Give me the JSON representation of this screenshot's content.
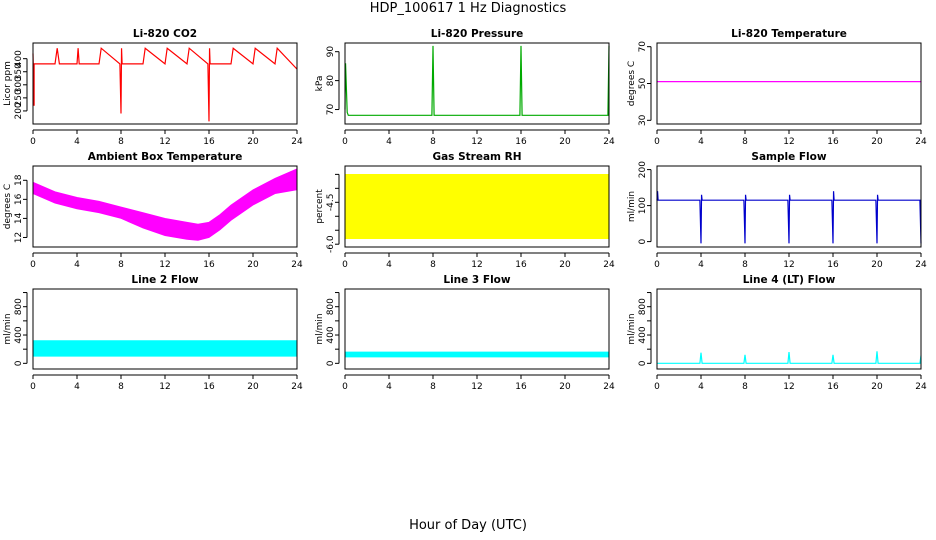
{
  "title": "HDP_100617  1 Hz Diagnostics",
  "xlabel": "Hour of Day (UTC)",
  "chart_data": [
    {
      "type": "line",
      "title": "Li-820 CO2",
      "ylabel": "Licor ppm",
      "color": "#ff0000",
      "xlim": [
        0,
        24
      ],
      "ylim": [
        150,
        460
      ],
      "xticks": [
        0,
        4,
        8,
        12,
        16,
        20,
        24
      ],
      "yticks": [
        200,
        250,
        300,
        350,
        400
      ],
      "series": {
        "name": "Li-820 CO2",
        "x": [
          0,
          0.1,
          0.1,
          0.2,
          0.3,
          2,
          2.2,
          2.4,
          4,
          4.1,
          4.2,
          6,
          6.2,
          7.9,
          8,
          8.05,
          8.1,
          10,
          10.2,
          12,
          12.2,
          14,
          14.2,
          15.9,
          16,
          16.05,
          16.1,
          18,
          18.2,
          20,
          20.2,
          22,
          22.2,
          24
        ],
        "y": [
          420,
          220,
          380,
          380,
          380,
          380,
          440,
          380,
          380,
          440,
          380,
          380,
          440,
          380,
          190,
          440,
          380,
          380,
          440,
          380,
          440,
          380,
          440,
          380,
          160,
          440,
          380,
          380,
          440,
          380,
          440,
          380,
          440,
          360
        ]
      }
    },
    {
      "type": "line",
      "title": "Li-820 Pressure",
      "ylabel": "kPa",
      "color": "#00aa00",
      "xlim": [
        0,
        24
      ],
      "ylim": [
        65,
        93
      ],
      "xticks": [
        0,
        4,
        8,
        12,
        16,
        20,
        24
      ],
      "yticks": [
        70,
        80,
        90
      ],
      "series": {
        "name": "Li-820 Pressure",
        "x": [
          0,
          0.05,
          0.2,
          0.3,
          2,
          4,
          6,
          7.9,
          8,
          8.1,
          12,
          15.9,
          16,
          16.1,
          20,
          23.9,
          24
        ],
        "y": [
          70,
          86,
          69,
          68,
          68,
          68,
          68,
          68,
          92,
          68,
          68,
          68,
          92,
          68,
          68,
          68,
          92
        ]
      }
    },
    {
      "type": "line",
      "title": "Li-820 Temperature",
      "ylabel": "degrees C",
      "color": "#ff00ff",
      "xlim": [
        0,
        24
      ],
      "ylim": [
        28,
        72
      ],
      "xticks": [
        0,
        4,
        8,
        12,
        16,
        20,
        24
      ],
      "yticks": [
        30,
        50,
        70
      ],
      "series": {
        "name": "Li-820 Temperature",
        "x": [
          0,
          24
        ],
        "y": [
          51,
          51
        ]
      }
    },
    {
      "type": "area",
      "title": "Ambient Box Temperature",
      "ylabel": "degrees C",
      "color": "#ff00ff",
      "xlim": [
        0,
        24
      ],
      "ylim": [
        11,
        19.5
      ],
      "xticks": [
        0,
        4,
        8,
        12,
        16,
        20,
        24
      ],
      "yticks": [
        12,
        14,
        16,
        18
      ],
      "series": [
        {
          "name": "upper",
          "x": [
            0,
            2,
            4,
            6,
            8,
            10,
            12,
            14,
            15,
            16,
            17,
            18,
            20,
            22,
            24
          ],
          "y": [
            17.8,
            16.8,
            16.2,
            15.8,
            15.2,
            14.6,
            14.0,
            13.6,
            13.4,
            13.6,
            14.4,
            15.4,
            17.0,
            18.2,
            19.2
          ]
        },
        {
          "name": "lower",
          "x": [
            0,
            2,
            4,
            6,
            8,
            10,
            12,
            14,
            15,
            16,
            17,
            18,
            20,
            22,
            24
          ],
          "y": [
            16.6,
            15.6,
            15.0,
            14.6,
            14.0,
            13.0,
            12.2,
            11.8,
            11.7,
            12.0,
            12.8,
            13.8,
            15.4,
            16.6,
            17.0
          ]
        }
      ]
    },
    {
      "type": "area",
      "title": "Gas Stream RH",
      "ylabel": "percent",
      "color": "#ffff00",
      "xlim": [
        0,
        24
      ],
      "ylim": [
        -6.1,
        -3.2
      ],
      "xticks": [
        0,
        4,
        8,
        12,
        16,
        20,
        24
      ],
      "yticks": [
        -6.0,
        -5.5,
        -5.0,
        -4.5,
        -4.0,
        -3.5
      ],
      "ytick_labels": [
        "-6.0",
        "",
        "",
        "-4.5",
        "",
        ""
      ],
      "series": [
        {
          "name": "upper",
          "x": [
            0,
            24
          ],
          "y": [
            -3.5,
            -3.5
          ]
        },
        {
          "name": "lower",
          "x": [
            0,
            24
          ],
          "y": [
            -5.8,
            -5.8
          ]
        }
      ]
    },
    {
      "type": "line",
      "title": "Sample Flow",
      "ylabel": "ml/min",
      "color": "#0000cc",
      "xlim": [
        0,
        24
      ],
      "ylim": [
        -15,
        210
      ],
      "xticks": [
        0,
        4,
        8,
        12,
        16,
        20,
        24
      ],
      "yticks": [
        0,
        100,
        200
      ],
      "series": {
        "name": "Sample Flow",
        "x": [
          0,
          0.05,
          0.1,
          3.9,
          4,
          4.05,
          4.1,
          7.9,
          8,
          8.05,
          8.1,
          11.9,
          12,
          12.05,
          12.1,
          15.9,
          16,
          16.05,
          16.1,
          19.9,
          20,
          20.05,
          20.1,
          23.9,
          24
        ],
        "y": [
          115,
          140,
          115,
          115,
          -5,
          130,
          115,
          115,
          -5,
          130,
          115,
          115,
          -5,
          130,
          115,
          115,
          -5,
          140,
          115,
          115,
          -5,
          130,
          115,
          115,
          -5
        ]
      }
    },
    {
      "type": "area",
      "title": "Line 2 Flow",
      "ylabel": "ml/min",
      "color": "#00ffff",
      "xlim": [
        0,
        24
      ],
      "ylim": [
        -80,
        1050
      ],
      "xticks": [
        0,
        4,
        8,
        12,
        16,
        20,
        24
      ],
      "yticks": [
        0,
        200,
        400,
        600,
        800,
        1000
      ],
      "ytick_labels": [
        "0",
        "",
        "400",
        "",
        "800",
        ""
      ],
      "series": [
        {
          "name": "upper",
          "x": [
            0,
            24
          ],
          "y": [
            320,
            320
          ]
        },
        {
          "name": "lower",
          "x": [
            0,
            24
          ],
          "y": [
            100,
            100
          ]
        }
      ]
    },
    {
      "type": "area",
      "title": "Line 3 Flow",
      "ylabel": "ml/min",
      "color": "#00ffff",
      "xlim": [
        0,
        24
      ],
      "ylim": [
        -80,
        1050
      ],
      "xticks": [
        0,
        4,
        8,
        12,
        16,
        20,
        24
      ],
      "yticks": [
        0,
        200,
        400,
        600,
        800,
        1000
      ],
      "ytick_labels": [
        "0",
        "",
        "400",
        "",
        "800",
        ""
      ],
      "series": [
        {
          "name": "upper",
          "x": [
            0,
            24
          ],
          "y": [
            160,
            160
          ]
        },
        {
          "name": "lower",
          "x": [
            0,
            24
          ],
          "y": [
            90,
            90
          ]
        }
      ]
    },
    {
      "type": "line",
      "title": "Line 4 (LT) Flow",
      "ylabel": "ml/min",
      "color": "#00ffff",
      "xlim": [
        0,
        24
      ],
      "ylim": [
        -80,
        1050
      ],
      "xticks": [
        0,
        4,
        8,
        12,
        16,
        20,
        24
      ],
      "yticks": [
        0,
        200,
        400,
        600,
        800,
        1000
      ],
      "ytick_labels": [
        "0",
        "",
        "400",
        "",
        "800",
        ""
      ],
      "series": {
        "name": "Line 4 (LT) Flow",
        "x": [
          0,
          3.9,
          4,
          4.1,
          7.9,
          8,
          8.1,
          11.9,
          12,
          12.1,
          15.9,
          16,
          16.1,
          19.9,
          20,
          20.1,
          23.9,
          24
        ],
        "y": [
          0,
          0,
          150,
          0,
          0,
          120,
          0,
          0,
          160,
          0,
          0,
          120,
          0,
          0,
          170,
          0,
          0,
          110
        ]
      }
    }
  ]
}
